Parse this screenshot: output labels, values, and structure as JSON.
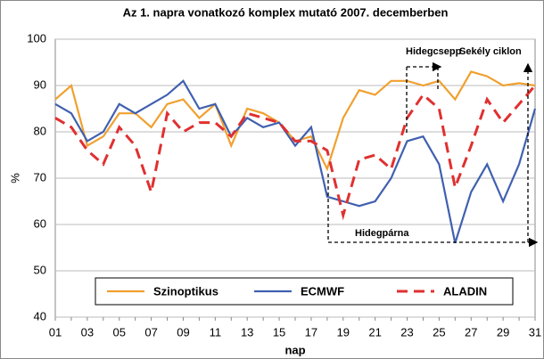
{
  "chart_data": {
    "type": "line",
    "title": "Az 1. napra vonatkozó komplex mutató 2007. decemberben",
    "x_label": "nap",
    "y_label": "%",
    "categories": [
      "01",
      null,
      "03",
      null,
      "05",
      null,
      "07",
      null,
      "09",
      null,
      "11",
      null,
      "13",
      null,
      "15",
      null,
      "17",
      null,
      "19",
      null,
      "21",
      null,
      "23",
      null,
      "25",
      null,
      "27",
      null,
      "29",
      null,
      "31"
    ],
    "series": [
      {
        "name": "Szinoptikus",
        "color": "#f0a030",
        "dash": false,
        "values": [
          87,
          90,
          77,
          79,
          84,
          84,
          81,
          86,
          87,
          83,
          86,
          77,
          85,
          84,
          82,
          78,
          79,
          72,
          83,
          89,
          88,
          91,
          91,
          90,
          91,
          87,
          93,
          92,
          90,
          90.5,
          90
        ]
      },
      {
        "name": "ECMWF",
        "color": "#4060b0",
        "dash": false,
        "values": [
          86,
          84,
          78,
          80,
          86,
          84,
          86,
          88,
          91,
          85,
          86,
          79,
          83,
          81,
          82,
          77,
          81,
          66,
          65,
          64,
          65,
          70,
          78,
          79,
          73,
          56,
          67,
          73,
          65,
          73,
          85
        ]
      },
      {
        "name": "ALADIN",
        "color": "#e03030",
        "dash": true,
        "values": [
          83,
          81,
          76,
          73,
          81,
          77,
          67,
          84,
          80,
          82,
          82,
          79,
          84,
          83,
          82,
          78,
          78,
          76,
          62,
          74,
          75,
          72,
          83,
          88,
          85,
          68,
          77,
          87,
          82,
          86,
          90
        ]
      }
    ],
    "annotations": [
      "Hidegcsepp",
      "Sekély ciklon",
      "Hidegpárna"
    ],
    "ylim": [
      40,
      100
    ],
    "yticks": [
      40,
      50,
      60,
      70,
      80,
      90,
      100
    ],
    "grid": true
  }
}
